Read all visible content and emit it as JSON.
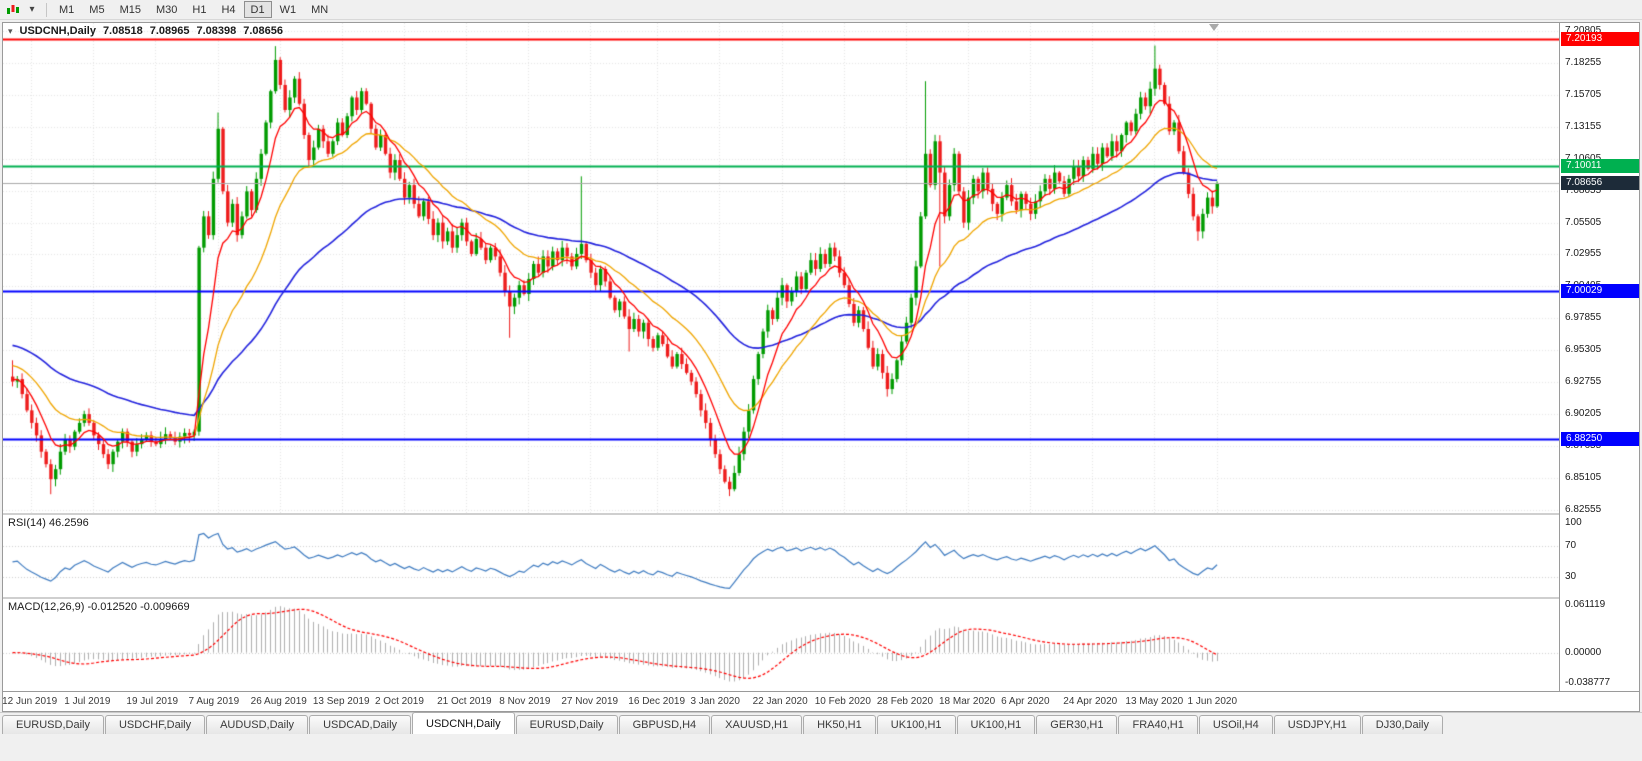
{
  "colors": {
    "candle_up": "#009B00",
    "candle_down": "#EE1C1C",
    "ma_fast": "#FF0000",
    "ma_mid": "#EFA500",
    "ma_slow": "#2222DD",
    "rsi_line": "#3E7BC0",
    "macd_hist": "#AFAFAF",
    "macd_signal": "#FF0000",
    "price_line": "#A8A8A8",
    "price_marker_bg": "#1D2B39",
    "grid": "#E4E4E4"
  },
  "toolbar": {
    "timeframes": [
      "M1",
      "M5",
      "M15",
      "M30",
      "H1",
      "H4",
      "D1",
      "W1",
      "MN"
    ],
    "active_timeframe": "D1"
  },
  "chart": {
    "symbol_period": "USDCNH,Daily",
    "ohlc": {
      "open": "7.08518",
      "high": "7.08965",
      "low": "7.08398",
      "close": "7.08656"
    },
    "price_axis": [
      "7.20805",
      "7.18255",
      "7.15705",
      "7.13155",
      "7.10605",
      "7.08055",
      "7.05505",
      "7.02955",
      "7.00405",
      "6.97855",
      "6.95305",
      "6.92755",
      "6.90205",
      "6.87655",
      "6.85105",
      "6.82555"
    ],
    "levels": [
      {
        "value": 7.20193,
        "label": "7.20193",
        "color": "#FF0000",
        "width": 2
      },
      {
        "value": 7.10011,
        "label": "7.10011",
        "color": "#00B050",
        "width": 2
      },
      {
        "value": 7.00029,
        "label": "7.00029",
        "color": "#0000FF",
        "width": 2
      },
      {
        "value": 6.8825,
        "label": "6.88250",
        "color": "#0000FF",
        "width": 2
      }
    ],
    "current_price": {
      "value": 7.08656,
      "label": "7.08656"
    },
    "date_axis": [
      "12 Jun 2019",
      "1 Jul 2019",
      "19 Jul 2019",
      "7 Aug 2019",
      "26 Aug 2019",
      "13 Sep 2019",
      "2 Oct 2019",
      "21 Oct 2019",
      "8 Nov 2019",
      "27 Nov 2019",
      "16 Dec 2019",
      "3 Jan 2020",
      "22 Jan 2020",
      "10 Feb 2020",
      "28 Feb 2020",
      "18 Mar 2020",
      "6 Apr 2020",
      "24 Apr 2020",
      "13 May 2020",
      "1 Jun 2020"
    ]
  },
  "rsi": {
    "label": "RSI(14) 46.2596",
    "axis": [
      "100",
      "70",
      "30"
    ],
    "levels": [
      70,
      30
    ]
  },
  "macd": {
    "label": "MACD(12,26,9) -0.012520 -0.009669",
    "axis": [
      "0.061119",
      "0.00000",
      "-0.038777"
    ]
  },
  "tabs": {
    "items": [
      "EURUSD,Daily",
      "USDCHF,Daily",
      "AUDUSD,Daily",
      "USDCAD,Daily",
      "USDCNH,Daily",
      "EURUSD,Daily",
      "GBPUSD,H4",
      "XAUUSD,H1",
      "HK50,H1",
      "UK100,H1",
      "UK100,H1",
      "GER30,H1",
      "FRA40,H1",
      "USOil,H4",
      "USDJPY,H1",
      "DJ30,Daily"
    ],
    "active_index": 4
  },
  "chart_data": {
    "type": "candlestick",
    "symbol": "USDCNH",
    "timeframe": "Daily",
    "current_bar": {
      "open": 7.08518,
      "high": 7.08965,
      "low": 7.08398,
      "close": 7.08656
    },
    "y_range": [
      6.823,
      7.2145
    ],
    "horizontal_levels": [
      7.20193,
      7.10011,
      7.00029,
      6.8825
    ],
    "indicators": {
      "rsi": {
        "period": 14,
        "current": 46.2596,
        "levels": [
          70,
          30
        ]
      },
      "macd": {
        "fast": 12,
        "slow": 26,
        "signal": 9,
        "current_macd": -0.01252,
        "current_signal": -0.009669
      }
    },
    "first_open": 6.932,
    "closes": [
      6.928,
      6.93,
      6.918,
      6.905,
      6.895,
      6.885,
      6.872,
      6.862,
      6.85,
      6.858,
      6.872,
      6.882,
      6.876,
      6.888,
      6.895,
      6.902,
      6.895,
      6.885,
      6.878,
      6.87,
      6.862,
      6.872,
      6.88,
      6.888,
      6.88,
      6.872,
      6.878,
      6.882,
      6.885,
      6.88,
      6.878,
      6.882,
      6.886,
      6.883,
      6.88,
      6.884,
      6.887,
      6.885,
      6.888,
      7.035,
      7.06,
      7.045,
      7.09,
      7.13,
      7.08,
      7.055,
      7.07,
      7.045,
      7.06,
      7.08,
      7.065,
      7.09,
      7.11,
      7.135,
      7.16,
      7.185,
      7.165,
      7.145,
      7.155,
      7.17,
      7.15,
      7.125,
      7.105,
      7.115,
      7.13,
      7.12,
      7.11,
      7.12,
      7.135,
      7.125,
      7.14,
      7.155,
      7.145,
      7.16,
      7.15,
      7.13,
      7.115,
      7.125,
      7.11,
      7.095,
      7.105,
      7.09,
      7.075,
      7.085,
      7.07,
      7.06,
      7.072,
      7.058,
      7.045,
      7.055,
      7.04,
      7.048,
      7.035,
      7.045,
      7.055,
      7.04,
      7.03,
      7.042,
      7.035,
      7.025,
      7.035,
      7.028,
      7.015,
      7.0,
      6.988,
      6.995,
      7.005,
      6.998,
      7.01,
      7.022,
      7.015,
      7.028,
      7.02,
      7.032,
      7.025,
      7.035,
      7.028,
      7.02,
      7.03,
      7.038,
      7.025,
      7.015,
      7.005,
      7.018,
      7.008,
      6.995,
      6.985,
      6.992,
      6.98,
      6.97,
      6.978,
      6.968,
      6.975,
      6.962,
      6.955,
      6.965,
      6.958,
      6.948,
      6.94,
      6.95,
      6.942,
      6.935,
      6.928,
      6.918,
      6.905,
      6.895,
      6.882,
      6.87,
      6.858,
      6.848,
      6.842,
      6.855,
      6.87,
      6.888,
      6.905,
      6.93,
      6.95,
      6.968,
      6.985,
      6.978,
      6.995,
      7.005,
      6.992,
      7.0,
      7.012,
      7.002,
      7.015,
      7.025,
      7.018,
      7.03,
      7.022,
      7.035,
      7.028,
      7.015,
      7.005,
      6.99,
      6.975,
      6.985,
      6.97,
      6.955,
      6.94,
      6.95,
      6.935,
      6.922,
      6.93,
      6.945,
      6.96,
      6.975,
      6.995,
      7.02,
      7.06,
      7.11,
      7.085,
      7.12,
      7.095,
      7.06,
      7.085,
      7.11,
      7.08,
      7.055,
      7.075,
      7.09,
      7.08,
      7.095,
      7.082,
      7.07,
      7.062,
      7.075,
      7.085,
      7.072,
      7.065,
      7.078,
      7.07,
      7.062,
      7.072,
      7.08,
      7.09,
      7.082,
      7.095,
      7.088,
      7.078,
      7.09,
      7.1,
      7.092,
      7.105,
      7.098,
      7.11,
      7.102,
      7.115,
      7.108,
      7.12,
      7.112,
      7.125,
      7.135,
      7.128,
      7.142,
      7.155,
      7.148,
      7.162,
      7.178,
      7.165,
      7.15,
      7.128,
      7.135,
      7.112,
      7.095,
      7.078,
      7.06,
      7.048,
      7.062,
      7.075,
      7.068,
      7.08656
    ],
    "wick_overrides": [
      {
        "i": 0,
        "high": 6.945
      },
      {
        "i": 8,
        "low": 6.838
      },
      {
        "i": 43,
        "high": 7.143
      },
      {
        "i": 55,
        "high": 7.196
      },
      {
        "i": 104,
        "low": 6.963
      },
      {
        "i": 119,
        "high": 7.092
      },
      {
        "i": 129,
        "low": 6.952
      },
      {
        "i": 150,
        "low": 6.8365
      },
      {
        "i": 191,
        "high": 7.168
      },
      {
        "i": 194,
        "low": 7.02
      },
      {
        "i": 239,
        "high": 7.1965
      },
      {
        "i": 248,
        "low": 7.0405
      }
    ]
  }
}
